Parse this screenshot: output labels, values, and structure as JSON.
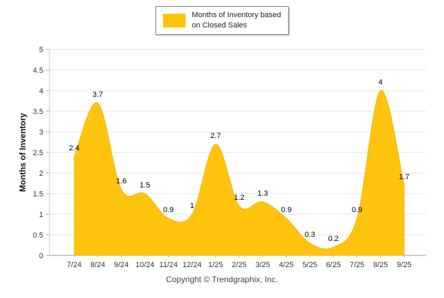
{
  "legend": {
    "line1": "Months of Inventory based",
    "line2": "on Closed Sales",
    "swatch_color": "#FFC40D"
  },
  "chart_data": {
    "type": "area",
    "title": "",
    "xlabel": "",
    "ylabel": "Months of Inventory",
    "categories": [
      "7/24",
      "8/24",
      "9/24",
      "10/24",
      "11/24",
      "12/24",
      "1/25",
      "2/25",
      "3/25",
      "4/25",
      "5/25",
      "6/25",
      "7/25",
      "8/25",
      "9/25"
    ],
    "series": [
      {
        "name": "Months of Inventory based on Closed Sales",
        "values": [
          2.4,
          3.7,
          1.6,
          1.5,
          0.9,
          1,
          2.7,
          1.2,
          1.3,
          0.9,
          0.3,
          0.2,
          0.9,
          4,
          1.7
        ]
      }
    ],
    "y_ticks": [
      0,
      0.5,
      1,
      1.5,
      2,
      2.5,
      3,
      3.5,
      4,
      4.5,
      5
    ],
    "ylim": [
      0,
      5
    ],
    "grid": true,
    "legend_position": "top-center",
    "fill_color": "#FFC40D",
    "edge_color": "#F2B705",
    "label_color": "#000000",
    "data_labels": true
  },
  "footer": {
    "copyright": "Copyright © Trendgraphix, Inc."
  }
}
